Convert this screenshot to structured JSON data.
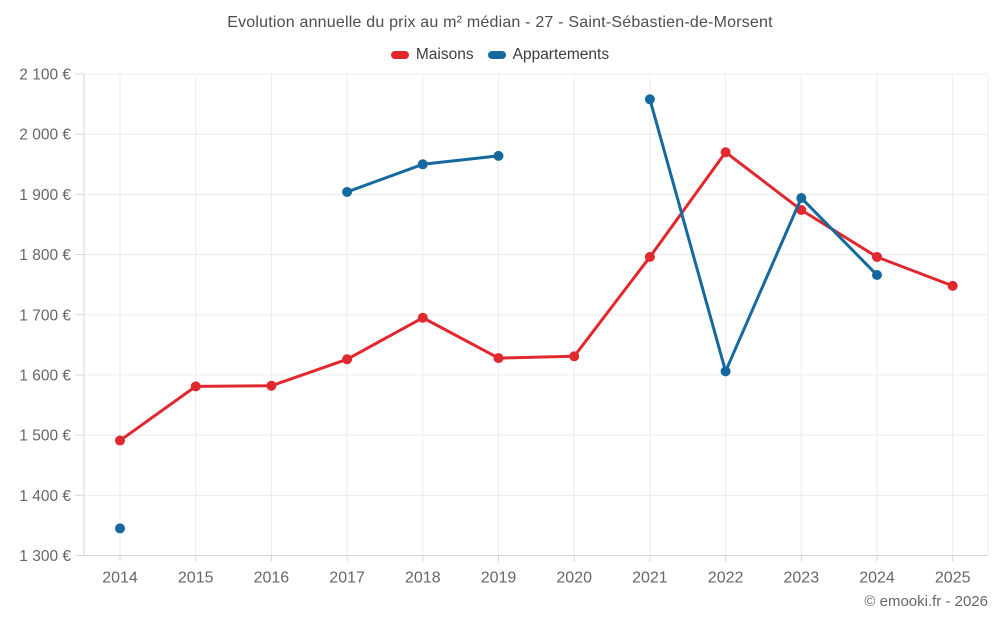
{
  "chart_data": {
    "type": "line",
    "title": "Evolution annuelle du prix au m² médian - 27 - Saint-Sébastien-de-Morsent",
    "categories": [
      "2014",
      "2015",
      "2016",
      "2017",
      "2018",
      "2019",
      "2020",
      "2021",
      "2022",
      "2023",
      "2024",
      "2025"
    ],
    "series": [
      {
        "name": "Maisons",
        "color": "#e0282e",
        "values": [
          1491,
          1581,
          1582,
          1626,
          1695,
          1628,
          1631,
          1796,
          1970,
          1874,
          1796,
          1748
        ]
      },
      {
        "name": "Appartements",
        "color": "#15699e",
        "values": [
          1345,
          null,
          null,
          1904,
          1950,
          1964,
          null,
          2058,
          1606,
          1894,
          1766,
          null
        ]
      }
    ],
    "ylim": [
      1300,
      2100
    ],
    "y_ticks": [
      {
        "value": 1300,
        "label": "1 300 €"
      },
      {
        "value": 1400,
        "label": "1 400 €"
      },
      {
        "value": 1500,
        "label": "1 500 €"
      },
      {
        "value": 1600,
        "label": "1 600 €"
      },
      {
        "value": 1700,
        "label": "1 700 €"
      },
      {
        "value": 1800,
        "label": "1 800 €"
      },
      {
        "value": 1900,
        "label": "1 900 €"
      },
      {
        "value": 2000,
        "label": "2 000 €"
      },
      {
        "value": 2100,
        "label": "2 100 €"
      }
    ],
    "grid": true,
    "legend_position": "top",
    "colors": {
      "gridline": "#ececec",
      "axis": "#d6d6d6",
      "tick_label": "#666666",
      "title_text": "#4d4d4d",
      "background": "#ffffff"
    }
  },
  "footer": {
    "copyright": "© emooki.fr - 2026"
  }
}
